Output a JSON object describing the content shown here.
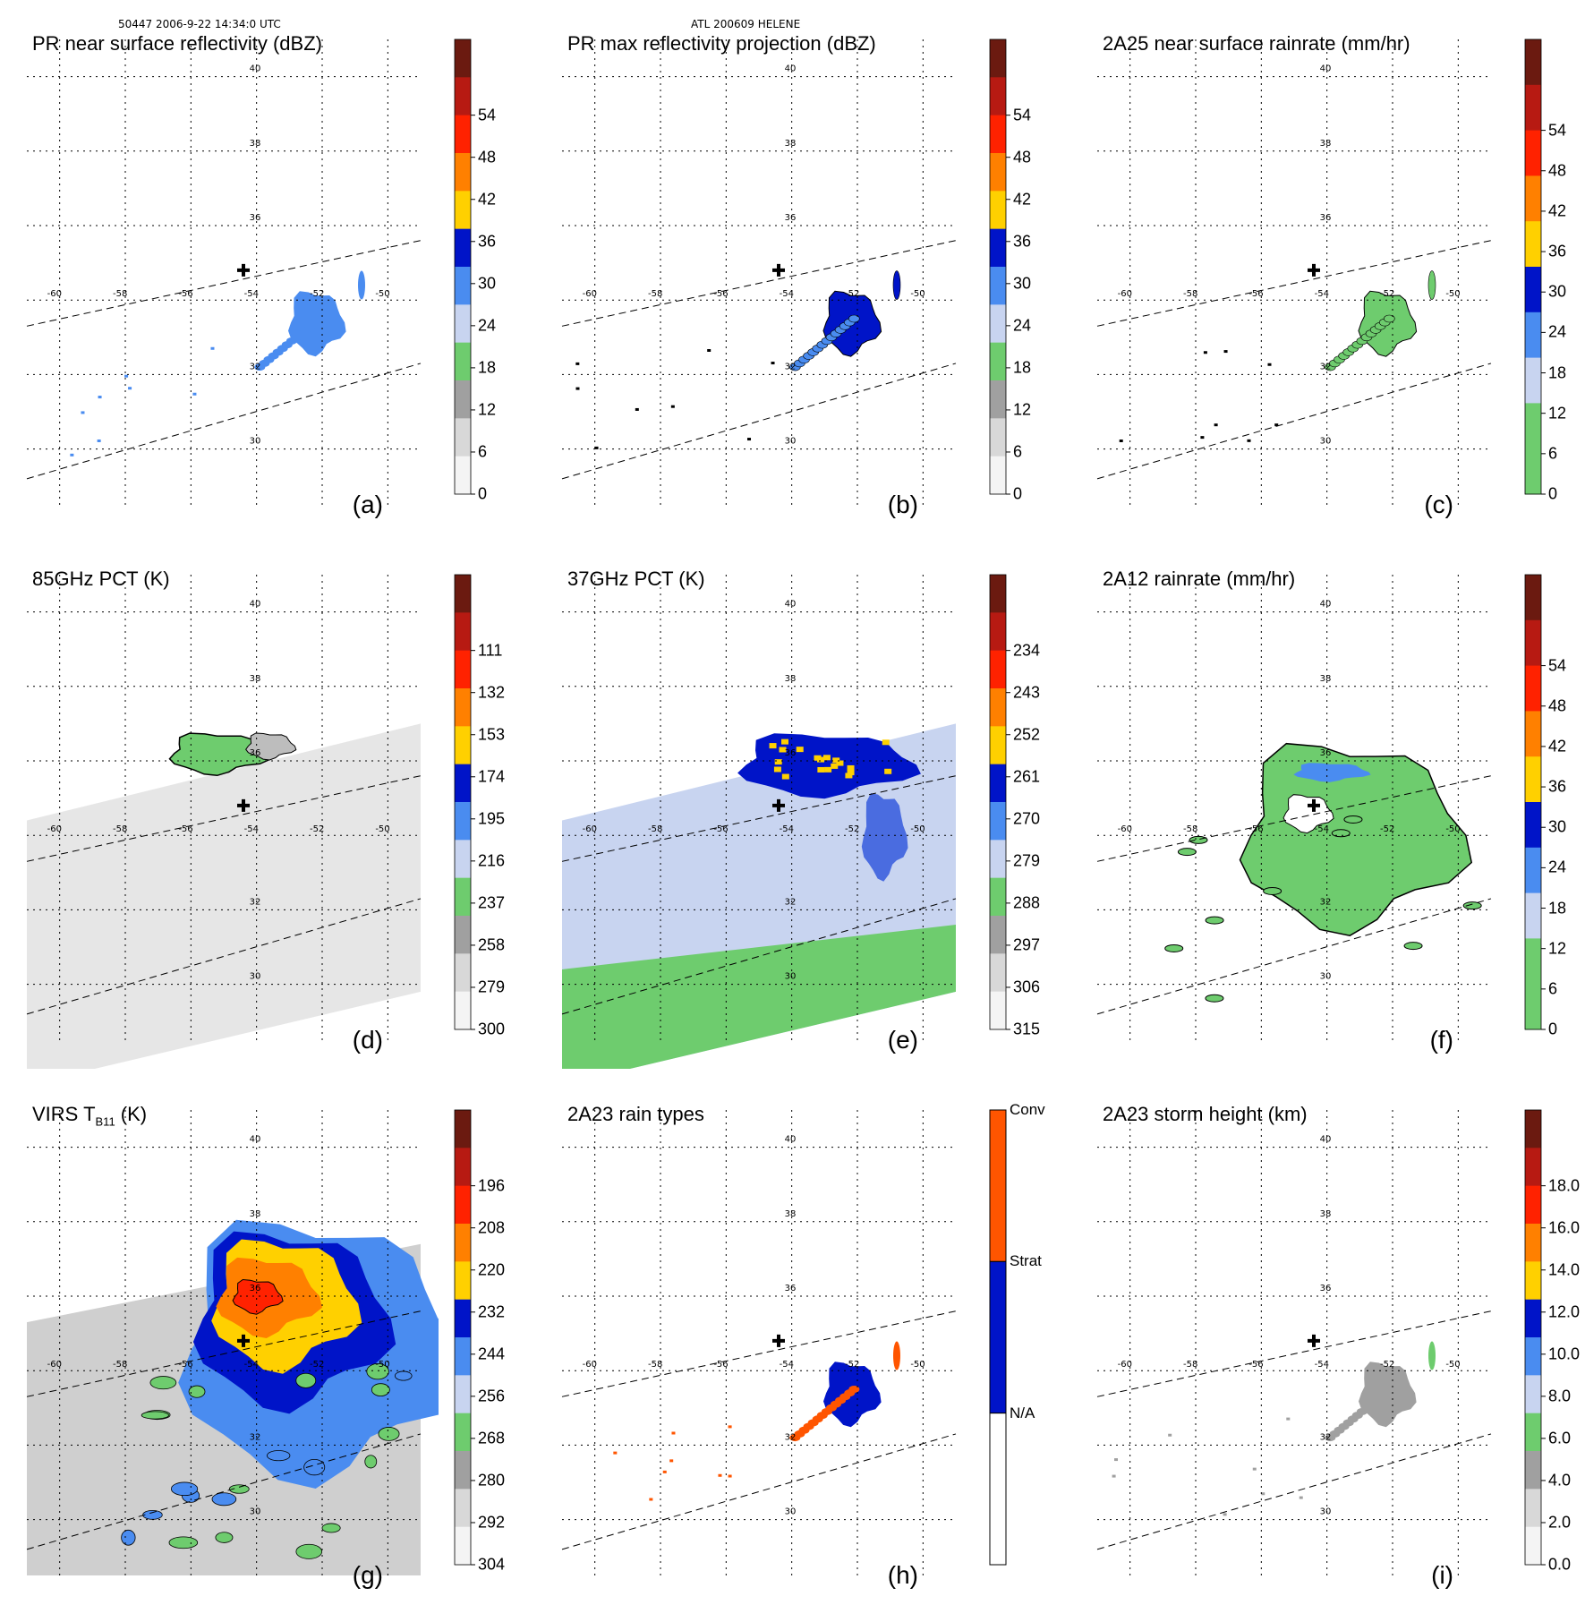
{
  "header": {
    "left": "50447 2006-9-22 14:34:0 UTC",
    "center": "ATL 200609 HELENE"
  },
  "map": {
    "lon_labels": [
      "-60",
      "-58",
      "-56",
      "-54",
      "-52",
      "-50"
    ],
    "lat_labels": [
      "40",
      "38",
      "36",
      "32",
      "30"
    ],
    "lon_range": [
      -61,
      -49
    ],
    "lat_range": [
      28.5,
      41
    ],
    "storm_center": [
      -54.4,
      34.8
    ]
  },
  "panels": [
    {
      "id": "a",
      "title": "PR near surface reflectivity (dBZ)",
      "label": "(a)",
      "ticks": [
        "54",
        "48",
        "42",
        "36",
        "30",
        "24",
        "18",
        "12",
        "6",
        "0"
      ],
      "colors": [
        "#6b1a10",
        "#b71a12",
        "#ff2200",
        "#ff8000",
        "#ffd000",
        "#0014c8",
        "#4a8cf0",
        "#c8d4f0",
        "#6ecc6e",
        "#a0a0a0",
        "#d8d8d8",
        "#f4f4f4"
      ]
    },
    {
      "id": "b",
      "title": "PR max reflectivity projection (dBZ)",
      "label": "(b)",
      "ticks": [
        "54",
        "48",
        "42",
        "36",
        "30",
        "24",
        "18",
        "12",
        "6",
        "0"
      ],
      "colors": [
        "#6b1a10",
        "#b71a12",
        "#ff2200",
        "#ff8000",
        "#ffd000",
        "#0014c8",
        "#4a8cf0",
        "#c8d4f0",
        "#6ecc6e",
        "#a0a0a0",
        "#d8d8d8",
        "#f4f4f4"
      ]
    },
    {
      "id": "c",
      "title": "2A25 near surface rainrate (mm/hr)",
      "label": "(c)",
      "ticks": [
        "54",
        "48",
        "42",
        "36",
        "30",
        "24",
        "18",
        "12",
        "6",
        "0"
      ],
      "colors": [
        "#6b1a10",
        "#b71a12",
        "#ff2200",
        "#ff8000",
        "#ffd000",
        "#0014c8",
        "#4a8cf0",
        "#c8d4f0",
        "#6ecc6e",
        "#6ecc6e"
      ]
    },
    {
      "id": "d",
      "title": "85GHz PCT (K)",
      "label": "(d)",
      "ticks": [
        "111",
        "132",
        "153",
        "174",
        "195",
        "216",
        "237",
        "258",
        "279",
        "300"
      ],
      "colors": [
        "#6b1a10",
        "#b71a12",
        "#ff2200",
        "#ff8000",
        "#ffd000",
        "#0014c8",
        "#4a8cf0",
        "#c8d4f0",
        "#6ecc6e",
        "#a0a0a0",
        "#d8d8d8",
        "#f4f4f4"
      ]
    },
    {
      "id": "e",
      "title": "37GHz PCT (K)",
      "label": "(e)",
      "ticks": [
        "234",
        "243",
        "252",
        "261",
        "270",
        "279",
        "288",
        "297",
        "306",
        "315"
      ],
      "colors": [
        "#6b1a10",
        "#b71a12",
        "#ff2200",
        "#ff8000",
        "#ffd000",
        "#0014c8",
        "#4a8cf0",
        "#c8d4f0",
        "#6ecc6e",
        "#a0a0a0",
        "#d8d8d8",
        "#f4f4f4"
      ]
    },
    {
      "id": "f",
      "title": "2A12 rainrate (mm/hr)",
      "label": "(f)",
      "ticks": [
        "54",
        "48",
        "42",
        "36",
        "30",
        "24",
        "18",
        "12",
        "6",
        "0"
      ],
      "colors": [
        "#6b1a10",
        "#b71a12",
        "#ff2200",
        "#ff8000",
        "#ffd000",
        "#0014c8",
        "#4a8cf0",
        "#c8d4f0",
        "#6ecc6e",
        "#6ecc6e"
      ]
    },
    {
      "id": "g",
      "title_main": "VIRS T",
      "title_sub": "B11",
      "title_tail": " (K)",
      "label": "(g)",
      "ticks": [
        "196",
        "208",
        "220",
        "232",
        "244",
        "256",
        "268",
        "280",
        "292",
        "304"
      ],
      "colors": [
        "#6b1a10",
        "#b71a12",
        "#ff2200",
        "#ff8000",
        "#ffd000",
        "#0014c8",
        "#4a8cf0",
        "#c8d4f0",
        "#6ecc6e",
        "#a0a0a0",
        "#d8d8d8",
        "#f4f4f4"
      ]
    },
    {
      "id": "h",
      "title": "2A23 rain types",
      "label": "(h)",
      "categories": [
        "Conv",
        "Strat",
        "N/A"
      ],
      "colors": [
        "#ff5500",
        "#0014c8",
        "#ffffff"
      ]
    },
    {
      "id": "i",
      "title": "2A23 storm height (km)",
      "label": "(i)",
      "ticks": [
        "18.0",
        "16.0",
        "14.0",
        "12.0",
        "10.0",
        "8.0",
        "6.0",
        "4.0",
        "2.0",
        "0.0"
      ],
      "colors": [
        "#6b1a10",
        "#b71a12",
        "#ff2200",
        "#ff8000",
        "#ffd000",
        "#0014c8",
        "#4a8cf0",
        "#c8d4f0",
        "#6ecc6e",
        "#a0a0a0",
        "#d8d8d8",
        "#f4f4f4"
      ]
    }
  ]
}
